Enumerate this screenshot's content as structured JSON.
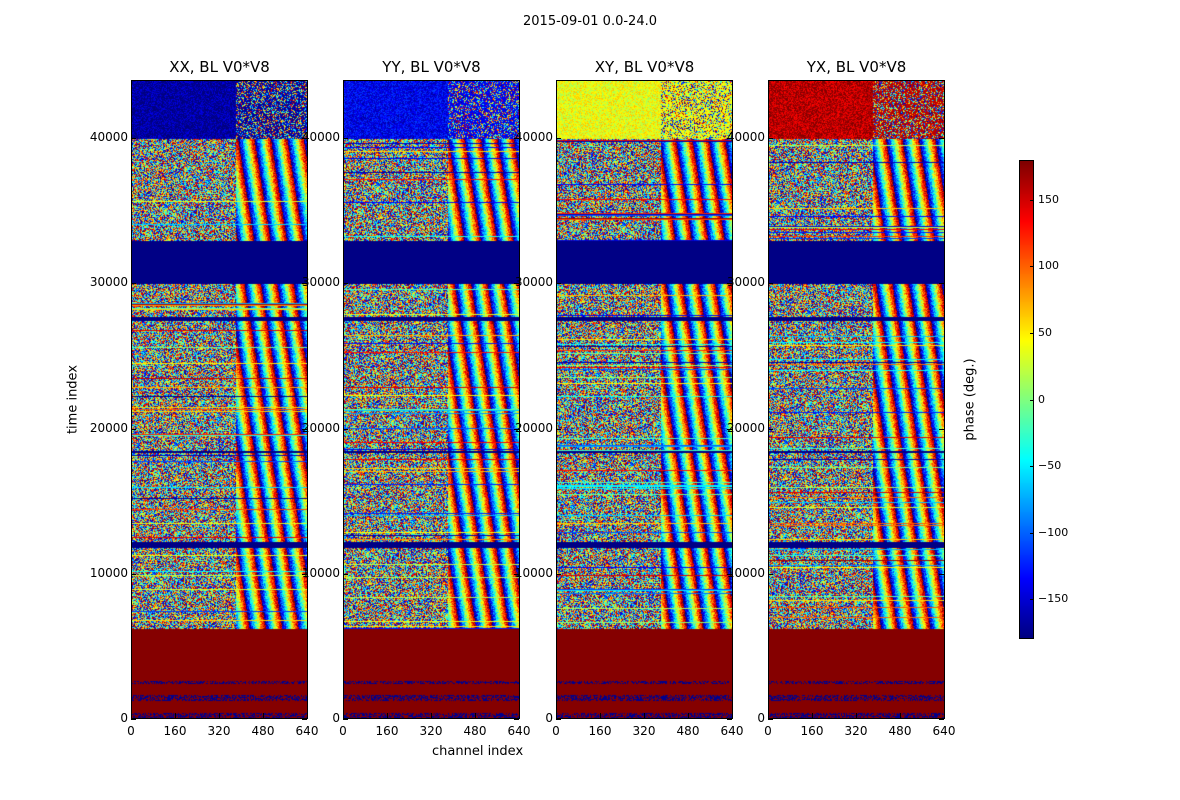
{
  "chart_data": {
    "type": "heatmap",
    "title": "2015-09-01 0.0-24.0",
    "xlabel": "channel index",
    "ylabel": "time index",
    "xlim": [
      0,
      640
    ],
    "ylim": [
      0,
      44000
    ],
    "x_ticks": [
      "0",
      "160",
      "320",
      "480",
      "640"
    ],
    "y_ticks": [
      "0",
      "10000",
      "20000",
      "30000",
      "40000"
    ],
    "panels": [
      {
        "title": "XX, BL V0*V8",
        "top_block_phase": -170
      },
      {
        "title": "YY, BL V0*V8",
        "top_block_phase": -140
      },
      {
        "title": "XY, BL V0*V8",
        "top_block_phase": 40
      },
      {
        "title": "YX, BL V0*V8",
        "top_block_phase": 160
      }
    ],
    "colorbar": {
      "label": "phase (deg.)",
      "range": [
        -180,
        180
      ],
      "ticks": [
        "150",
        "100",
        "50",
        "0",
        "−50",
        "−100",
        "−150"
      ],
      "tick_values": [
        150,
        100,
        50,
        0,
        -50,
        -100,
        -150
      ],
      "colormap": "jet"
    },
    "regions": {
      "constant_phase_180_rows": [
        0,
        6200
      ],
      "constant_phase_minus180_rows": [
        30000,
        33000
      ],
      "flagged_rows": [
        12000,
        27600,
        18400,
        40000
      ]
    }
  }
}
